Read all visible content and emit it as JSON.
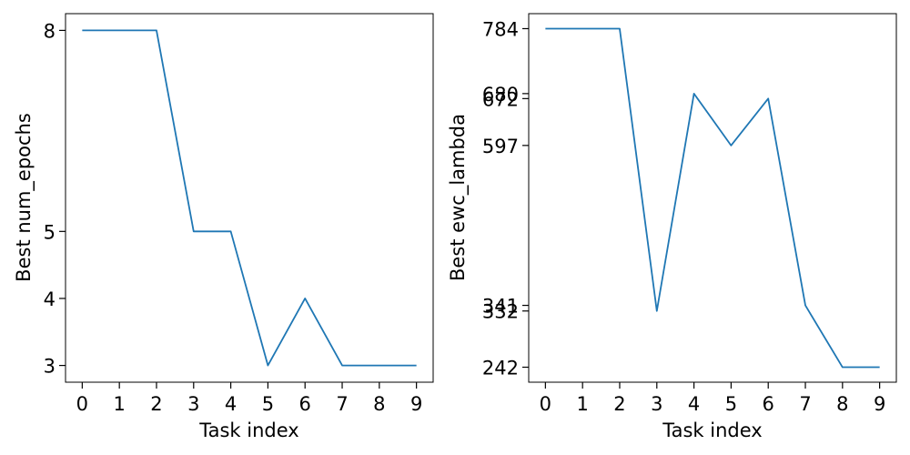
{
  "chart_data": [
    {
      "type": "line",
      "title": "",
      "xlabel": "Task index",
      "ylabel": "Best num_epochs",
      "x": [
        0,
        1,
        2,
        3,
        4,
        5,
        6,
        7,
        8,
        9
      ],
      "xticks": [
        "0",
        "1",
        "2",
        "3",
        "4",
        "5",
        "6",
        "7",
        "8",
        "9"
      ],
      "yticks": [
        3,
        4,
        5,
        8
      ],
      "ytick_labels": [
        "3",
        "4",
        "5",
        "8"
      ],
      "xlim": [
        -0.45,
        9.45
      ],
      "ylim": [
        2.75,
        8.25
      ],
      "grid": false,
      "color": "#1f77b4",
      "series": [
        {
          "values": [
            8,
            8,
            8,
            5,
            5,
            3,
            4,
            3,
            3,
            3
          ]
        }
      ]
    },
    {
      "type": "line",
      "title": "",
      "xlabel": "Task index",
      "ylabel": "Best ewc_lambda",
      "x": [
        0,
        1,
        2,
        3,
        4,
        5,
        6,
        7,
        8,
        9
      ],
      "xticks": [
        "0",
        "1",
        "2",
        "3",
        "4",
        "5",
        "6",
        "7",
        "8",
        "9"
      ],
      "yticks": [
        242,
        332,
        341,
        597,
        672,
        680,
        784
      ],
      "ytick_labels": [
        "242",
        "332",
        "341",
        "597",
        "672",
        "680",
        "784"
      ],
      "xlim": [
        -0.45,
        9.45
      ],
      "ylim": [
        218,
        808
      ],
      "grid": false,
      "color": "#1f77b4",
      "series": [
        {
          "values": [
            784,
            784,
            784,
            332,
            680,
            597,
            672,
            341,
            242,
            242
          ]
        }
      ]
    }
  ]
}
